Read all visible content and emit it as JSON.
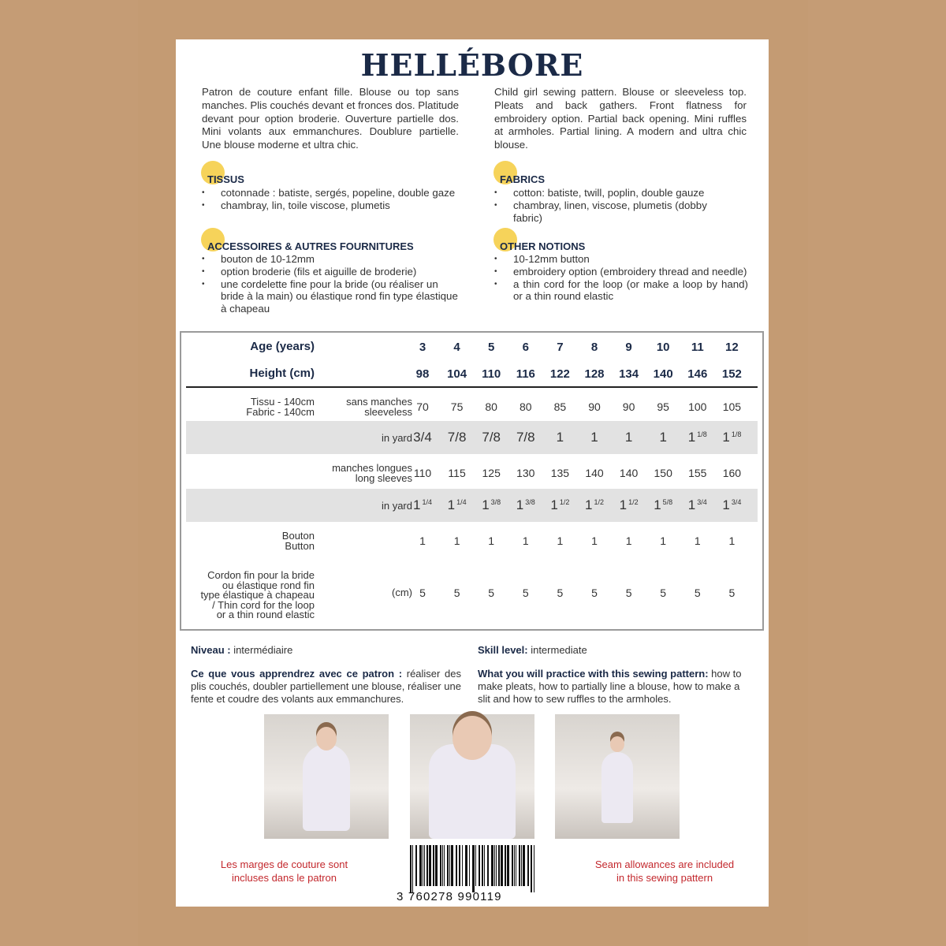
{
  "title": "HELLÉBORE",
  "intro_fr": "Patron de couture enfant fille. Blouse ou top sans manches. Plis couchés devant et fronces dos. Platitude devant pour option broderie. Ouverture partielle dos. Mini volants aux emmanchures. Doublure partielle. Une blouse moderne et ultra chic.",
  "intro_en": "Child girl sewing pattern. Blouse or sleeveless top. Pleats and back gathers. Front flatness for embroidery option. Partial back opening. Mini ruffles at armholes. Partial lining. A modern and ultra chic blouse.",
  "sections": {
    "fabric_fr": {
      "title": "TISSUS",
      "items": [
        "cotonnade : batiste, sergés, popeline, double gaze",
        "chambray, lin, toile viscose, plumetis"
      ]
    },
    "fabric_en": {
      "title": "FABRICS",
      "items": [
        "cotton: batiste, twill, poplin, double gauze",
        "chambray, linen, viscose, plumetis (dobby fabric)"
      ]
    },
    "notions_fr": {
      "title": "ACCESSOIRES & AUTRES FOURNITURES",
      "items": [
        "bouton de 10-12mm",
        "option broderie (fils et aiguille de broderie)",
        "une cordelette fine pour la bride (ou réaliser un bride à la main) ou élastique rond fin type élastique à chapeau"
      ]
    },
    "notions_en": {
      "title": "OTHER NOTIONS",
      "items": [
        "10-12mm button",
        "embroidery option (embroidery thread and needle)",
        "a thin cord for the loop (or make a loop by hand) or a thin round elastic"
      ]
    }
  },
  "table": {
    "age_label": "Age (years)",
    "ages": [
      "3",
      "4",
      "5",
      "6",
      "7",
      "8",
      "9",
      "10",
      "11",
      "12"
    ],
    "height_label": "Height (cm)",
    "heights": [
      "98",
      "104",
      "110",
      "116",
      "122",
      "128",
      "134",
      "140",
      "146",
      "152"
    ],
    "fabric_label": "Tissu - 140cm\nFabric - 140cm",
    "sleeveless_label": "sans manches\nsleeveless",
    "sleeveless": [
      "70",
      "75",
      "80",
      "80",
      "85",
      "90",
      "90",
      "95",
      "100",
      "105"
    ],
    "yard_label": "in yard",
    "sleeveless_yard": [
      [
        "",
        "3/4"
      ],
      [
        "",
        "7/8"
      ],
      [
        "",
        "7/8"
      ],
      [
        "",
        "7/8"
      ],
      [
        "1",
        ""
      ],
      [
        "1",
        ""
      ],
      [
        "1",
        ""
      ],
      [
        "1",
        ""
      ],
      [
        "1",
        "1/8"
      ],
      [
        "1",
        "1/8"
      ]
    ],
    "long_label": "manches longues\nlong sleeves",
    "long": [
      "110",
      "115",
      "125",
      "130",
      "135",
      "140",
      "140",
      "150",
      "155",
      "160"
    ],
    "long_yard": [
      [
        "1",
        "1/4"
      ],
      [
        "1",
        "1/4"
      ],
      [
        "1",
        "3/8"
      ],
      [
        "1",
        "3/8"
      ],
      [
        "1",
        "1/2"
      ],
      [
        "1",
        "1/2"
      ],
      [
        "1",
        "1/2"
      ],
      [
        "1",
        "5/8"
      ],
      [
        "1",
        "3/4"
      ],
      [
        "1",
        "3/4"
      ]
    ],
    "button_label": "Bouton\nButton",
    "buttons": [
      "1",
      "1",
      "1",
      "1",
      "1",
      "1",
      "1",
      "1",
      "1",
      "1"
    ],
    "cord_label": "Cordon fin pour la bride\nou  élastique rond fin\ntype élastique à chapeau\n/ Thin cord for the loop\nor a thin round elastic",
    "cord_unit": "(cm)",
    "cord": [
      "5",
      "5",
      "5",
      "5",
      "5",
      "5",
      "5",
      "5",
      "5",
      "5"
    ]
  },
  "level_fr": {
    "label": "Niveau :",
    "value": " intermédiaire"
  },
  "level_en": {
    "label": "Skill level:",
    "value": " intermediate"
  },
  "learn_fr": {
    "label": "Ce que vous apprendrez avec ce patron :",
    "value": " réaliser des plis couchés, doubler partiellement une blouse, réaliser une fente et coudre des volants aux emmanchures."
  },
  "learn_en": {
    "label": "What you will practice with this sewing pattern:",
    "value": " how to make pleats, how to partially line a blouse, how to make a slit and how to sew ruffles to the armholes."
  },
  "seam_fr": "Les marges de couture sont\nincluses dans le patron",
  "seam_en": "Seam allowances are included\nin this sewing pattern",
  "barcode": "3 760278 990119",
  "colors": {
    "navy": "#1b2a47",
    "highlight": "#f6d35a",
    "red": "#c3282d",
    "kraft": "#c49b73"
  }
}
